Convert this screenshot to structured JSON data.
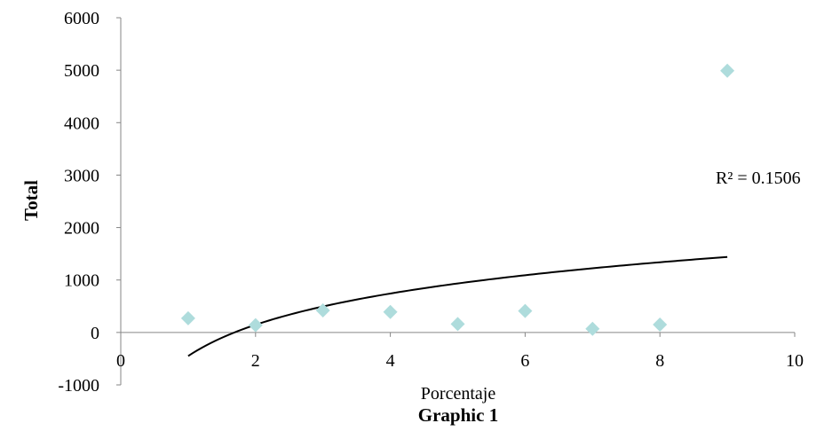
{
  "chart_data": {
    "type": "scatter",
    "title": "",
    "xlabel": "Porcentaje",
    "ylabel": "Total",
    "caption": "Graphic 1",
    "xlim": [
      0,
      10
    ],
    "ylim": [
      -1000,
      6000
    ],
    "x_ticks": [
      "0",
      "2",
      "4",
      "6",
      "8",
      "10"
    ],
    "y_ticks": [
      "-1000",
      "0",
      "1000",
      "2000",
      "3000",
      "4000",
      "5000",
      "6000"
    ],
    "grid": false,
    "legend": "none",
    "marker": "diamond",
    "marker_color": "#aedcdc",
    "points": [
      {
        "x": 1,
        "y": 270
      },
      {
        "x": 2,
        "y": 140
      },
      {
        "x": 3,
        "y": 420
      },
      {
        "x": 4,
        "y": 390
      },
      {
        "x": 5,
        "y": 160
      },
      {
        "x": 6,
        "y": 410
      },
      {
        "x": 7,
        "y": 70
      },
      {
        "x": 8,
        "y": 150
      },
      {
        "x": 9,
        "y": 4990
      }
    ],
    "trendline": {
      "type": "logarithmic",
      "intercept": -450,
      "slope": 860,
      "x_start": 1,
      "x_end": 9,
      "color": "#000000",
      "r_squared_label": "R² = 0.1506"
    }
  }
}
